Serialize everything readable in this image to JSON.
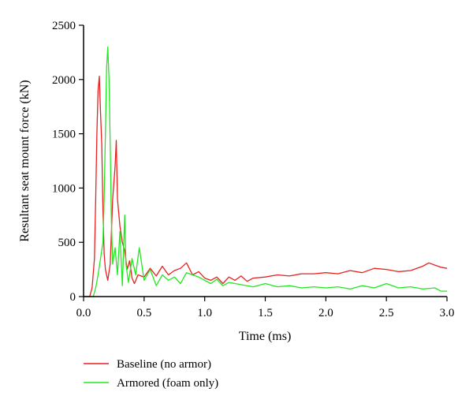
{
  "chart_data": {
    "type": "line",
    "title": "",
    "xlabel": "Time (ms)",
    "ylabel": "Resultant seat mount force (kN)",
    "xlim": [
      0,
      3.0
    ],
    "ylim": [
      0,
      2500
    ],
    "x_ticks": [
      "0.0",
      "0.5",
      "1.0",
      "1.5",
      "2.0",
      "2.5",
      "3.0"
    ],
    "y_ticks": [
      "0",
      "500",
      "1000",
      "1500",
      "2000",
      "2500"
    ],
    "grid": false,
    "legend_position": "bottom-left",
    "series": [
      {
        "name": "Baseline (no armor)",
        "color": "#e8201f",
        "points": [
          [
            0.0,
            0
          ],
          [
            0.05,
            0
          ],
          [
            0.07,
            80
          ],
          [
            0.09,
            350
          ],
          [
            0.1,
            900
          ],
          [
            0.11,
            1500
          ],
          [
            0.12,
            1900
          ],
          [
            0.13,
            2030
          ],
          [
            0.14,
            1700
          ],
          [
            0.15,
            1400
          ],
          [
            0.16,
            800
          ],
          [
            0.17,
            400
          ],
          [
            0.18,
            250
          ],
          [
            0.2,
            150
          ],
          [
            0.22,
            300
          ],
          [
            0.24,
            900
          ],
          [
            0.26,
            1200
          ],
          [
            0.27,
            1440
          ],
          [
            0.28,
            900
          ],
          [
            0.3,
            650
          ],
          [
            0.32,
            500
          ],
          [
            0.34,
            420
          ],
          [
            0.36,
            250
          ],
          [
            0.38,
            330
          ],
          [
            0.4,
            170
          ],
          [
            0.42,
            120
          ],
          [
            0.45,
            200
          ],
          [
            0.5,
            180
          ],
          [
            0.55,
            260
          ],
          [
            0.6,
            190
          ],
          [
            0.65,
            280
          ],
          [
            0.7,
            200
          ],
          [
            0.75,
            240
          ],
          [
            0.8,
            260
          ],
          [
            0.85,
            310
          ],
          [
            0.9,
            200
          ],
          [
            0.95,
            230
          ],
          [
            1.0,
            170
          ],
          [
            1.05,
            150
          ],
          [
            1.1,
            180
          ],
          [
            1.15,
            120
          ],
          [
            1.2,
            180
          ],
          [
            1.25,
            150
          ],
          [
            1.3,
            190
          ],
          [
            1.35,
            140
          ],
          [
            1.4,
            170
          ],
          [
            1.5,
            180
          ],
          [
            1.6,
            200
          ],
          [
            1.7,
            190
          ],
          [
            1.8,
            210
          ],
          [
            1.9,
            210
          ],
          [
            2.0,
            220
          ],
          [
            2.1,
            210
          ],
          [
            2.2,
            240
          ],
          [
            2.3,
            220
          ],
          [
            2.4,
            260
          ],
          [
            2.5,
            250
          ],
          [
            2.6,
            230
          ],
          [
            2.7,
            240
          ],
          [
            2.8,
            280
          ],
          [
            2.85,
            310
          ],
          [
            2.9,
            290
          ],
          [
            2.95,
            270
          ],
          [
            3.0,
            260
          ]
        ]
      },
      {
        "name": "Armored (foam only)",
        "color": "#22e81f",
        "points": [
          [
            0.0,
            0
          ],
          [
            0.08,
            0
          ],
          [
            0.1,
            80
          ],
          [
            0.12,
            200
          ],
          [
            0.14,
            350
          ],
          [
            0.16,
            500
          ],
          [
            0.17,
            900
          ],
          [
            0.18,
            1500
          ],
          [
            0.19,
            2100
          ],
          [
            0.2,
            2300
          ],
          [
            0.21,
            2000
          ],
          [
            0.22,
            1400
          ],
          [
            0.23,
            700
          ],
          [
            0.24,
            300
          ],
          [
            0.26,
            450
          ],
          [
            0.28,
            200
          ],
          [
            0.3,
            600
          ],
          [
            0.32,
            100
          ],
          [
            0.34,
            750
          ],
          [
            0.35,
            300
          ],
          [
            0.37,
            130
          ],
          [
            0.4,
            350
          ],
          [
            0.43,
            200
          ],
          [
            0.46,
            450
          ],
          [
            0.5,
            150
          ],
          [
            0.55,
            250
          ],
          [
            0.6,
            100
          ],
          [
            0.65,
            200
          ],
          [
            0.7,
            150
          ],
          [
            0.75,
            180
          ],
          [
            0.8,
            120
          ],
          [
            0.85,
            220
          ],
          [
            0.9,
            200
          ],
          [
            0.95,
            180
          ],
          [
            1.0,
            150
          ],
          [
            1.05,
            120
          ],
          [
            1.1,
            160
          ],
          [
            1.15,
            100
          ],
          [
            1.2,
            130
          ],
          [
            1.3,
            110
          ],
          [
            1.4,
            90
          ],
          [
            1.5,
            120
          ],
          [
            1.6,
            90
          ],
          [
            1.7,
            100
          ],
          [
            1.8,
            80
          ],
          [
            1.9,
            90
          ],
          [
            2.0,
            80
          ],
          [
            2.1,
            90
          ],
          [
            2.2,
            70
          ],
          [
            2.3,
            100
          ],
          [
            2.4,
            80
          ],
          [
            2.5,
            120
          ],
          [
            2.6,
            80
          ],
          [
            2.7,
            90
          ],
          [
            2.8,
            70
          ],
          [
            2.9,
            80
          ],
          [
            2.95,
            50
          ],
          [
            3.0,
            50
          ]
        ]
      }
    ]
  }
}
